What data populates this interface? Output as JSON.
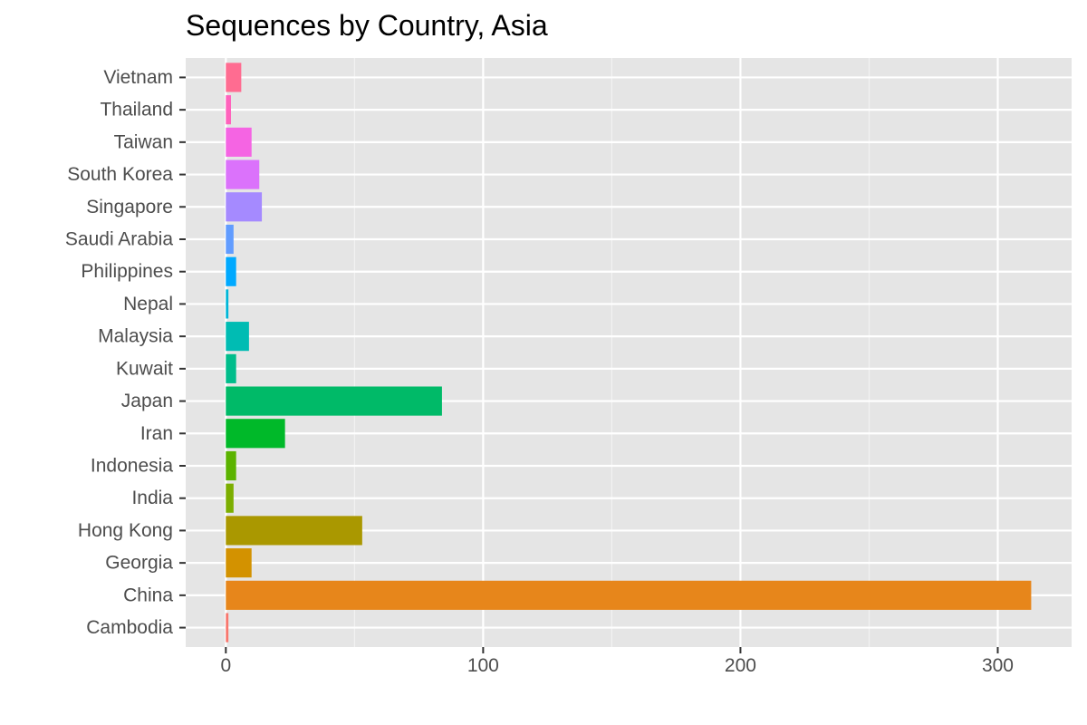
{
  "chart_data": {
    "type": "bar",
    "orientation": "horizontal",
    "title": "Sequences by Country, Asia",
    "xlabel": "",
    "ylabel": "",
    "categories": [
      "Cambodia",
      "China",
      "Georgia",
      "Hong Kong",
      "India",
      "Indonesia",
      "Iran",
      "Japan",
      "Kuwait",
      "Malaysia",
      "Nepal",
      "Philippines",
      "Saudi Arabia",
      "Singapore",
      "South Korea",
      "Taiwan",
      "Thailand",
      "Vietnam"
    ],
    "values": [
      1,
      313,
      10,
      53,
      3,
      4,
      23,
      84,
      4,
      9,
      1,
      4,
      3,
      14,
      13,
      10,
      2,
      6
    ],
    "colors": [
      "#F8766D",
      "#E7861B",
      "#D39200",
      "#AA9800",
      "#7CAE00",
      "#5BB300",
      "#00B929",
      "#00BA68",
      "#00BD8B",
      "#00BCB3",
      "#00B7D8",
      "#00A9FF",
      "#619CFF",
      "#A58AFF",
      "#DB72FB",
      "#F564E3",
      "#FF62BC",
      "#FF6C91"
    ],
    "xlim": [
      -15.6,
      328.7
    ],
    "xticks": [
      0,
      100,
      200,
      300
    ],
    "xtick_labels": [
      "0",
      "100",
      "200",
      "300"
    ],
    "grid": true,
    "background": "#E5E5E5",
    "legend": "none"
  }
}
